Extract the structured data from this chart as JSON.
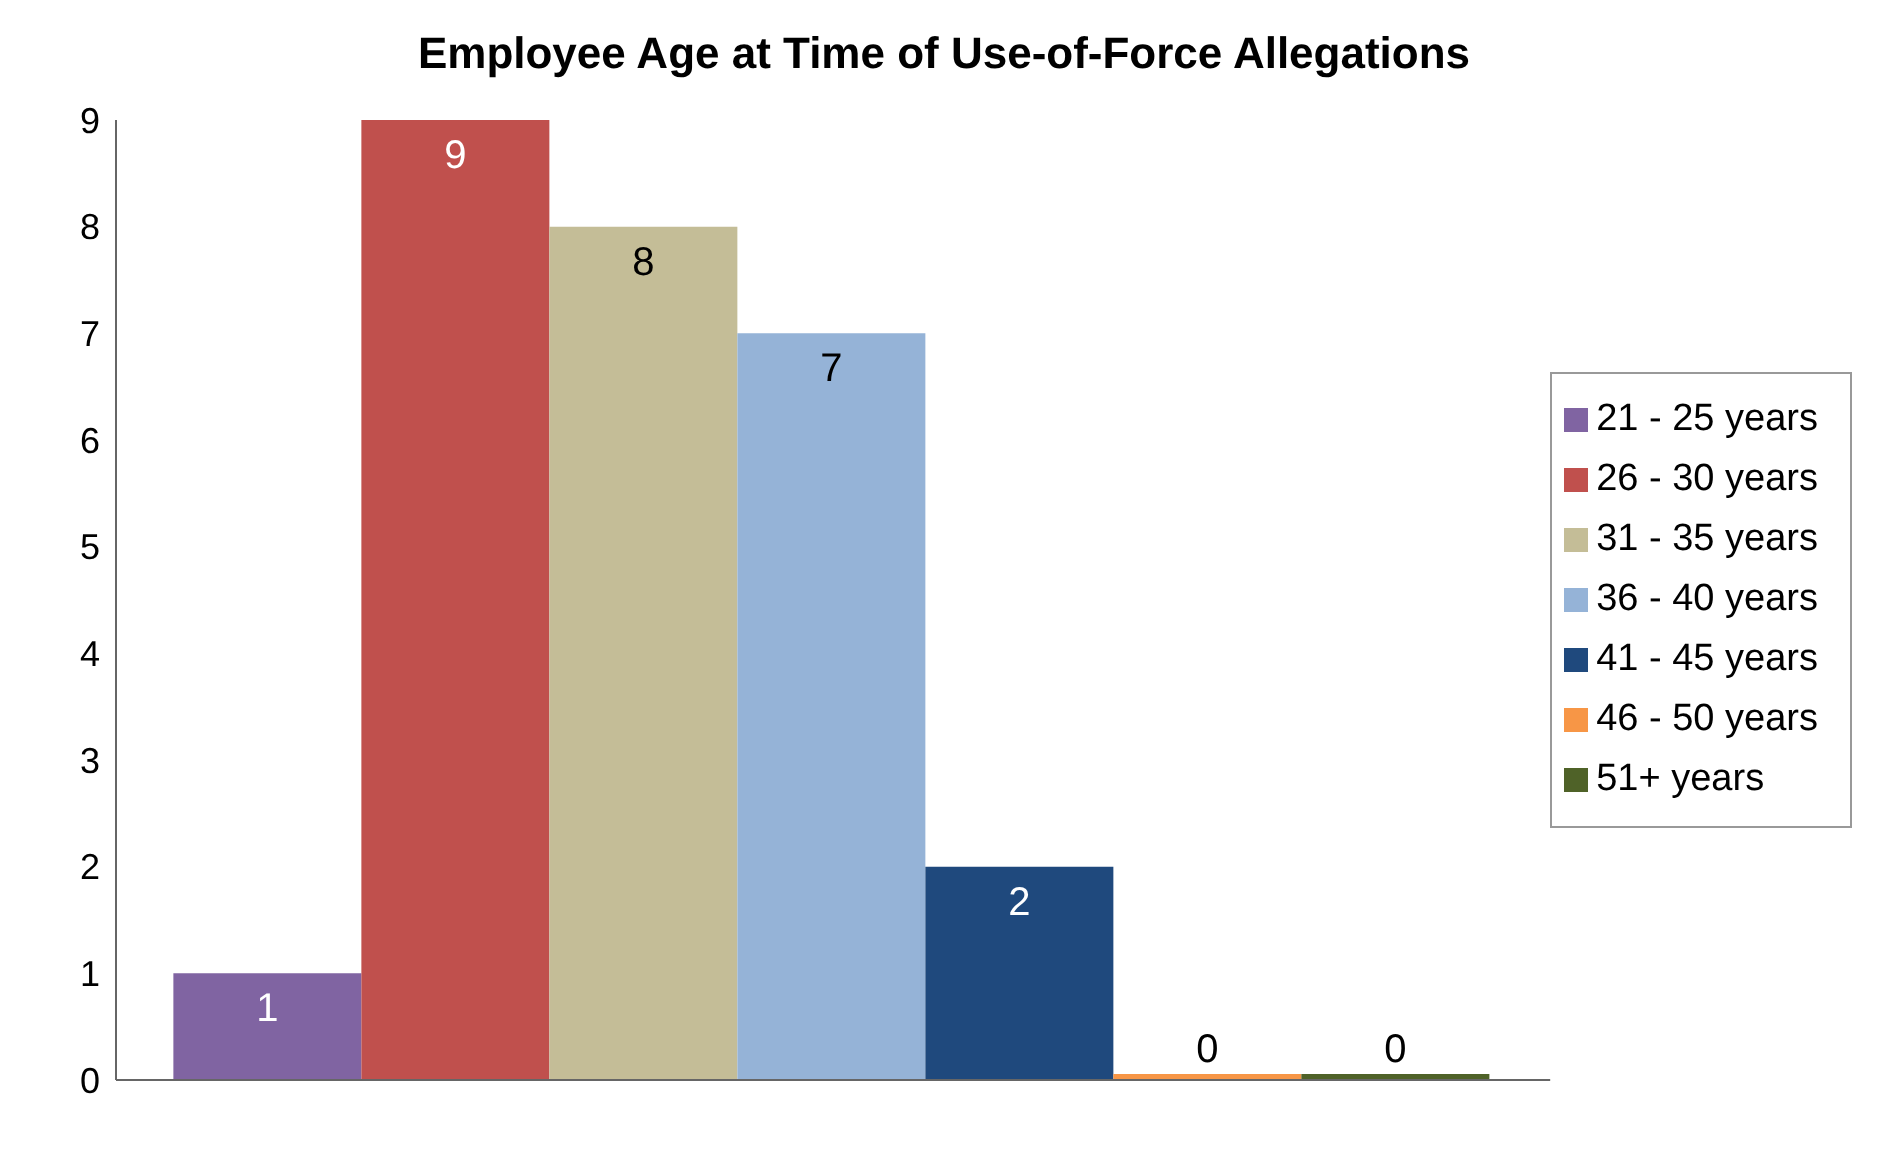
{
  "chart_data": {
    "type": "bar",
    "title": "Employee Age at Time of Use-of-Force Allegations",
    "categories": [
      null
    ],
    "series": [
      {
        "name": "21 - 25 years",
        "color": "#8064a2",
        "values": [
          1
        ]
      },
      {
        "name": "26 - 30 years",
        "color": "#c0504d",
        "values": [
          9
        ]
      },
      {
        "name": "31 - 35 years",
        "color": "#c4bd97",
        "values": [
          8
        ]
      },
      {
        "name": "36 - 40 years",
        "color": "#95b3d7",
        "values": [
          7
        ]
      },
      {
        "name": "41 - 45 years",
        "color": "#1f497d",
        "values": [
          2
        ]
      },
      {
        "name": "46 - 50 years",
        "color": "#f79646",
        "values": [
          0
        ]
      },
      {
        "name": "51+ years",
        "color": "#4f6228",
        "values": [
          0
        ]
      }
    ],
    "ylim": [
      0,
      9
    ],
    "yticks": [
      0,
      1,
      2,
      3,
      4,
      5,
      6,
      7,
      8,
      9
    ],
    "grid": false,
    "legend": "right",
    "data_labels": true
  }
}
